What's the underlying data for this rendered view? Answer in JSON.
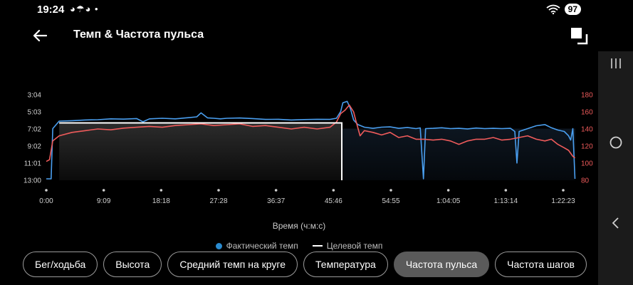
{
  "status_bar": {
    "time": "19:24",
    "notif_icons": "◕☂◕ •",
    "battery": "97"
  },
  "header": {
    "title": "Темп & Частота пульса"
  },
  "chart_data": {
    "type": "line",
    "title": "",
    "xlabel": "Время (ч:м:с)",
    "left_axis": {
      "labels": [
        "3:04",
        "5:03",
        "7:02",
        "9:02",
        "11:01",
        "13:00"
      ],
      "range_sec": [
        184,
        780
      ],
      "inverted": true
    },
    "right_axis": {
      "labels": [
        "180",
        "160",
        "140",
        "120",
        "100",
        "80"
      ],
      "range": [
        80,
        180
      ]
    },
    "x_ticks": [
      "0:00",
      "9:09",
      "18:18",
      "27:28",
      "36:37",
      "45:46",
      "54:55",
      "1:04:05",
      "1:13:14",
      "1:22:23"
    ],
    "x_range_sec": [
      0,
      4943
    ],
    "colors": {
      "pace": "#4a9ff0",
      "heart_rate": "#ef5b5b",
      "target": "#ffffff",
      "fill_top": "#2c2c2c"
    },
    "target_pace": {
      "value_sec": 380,
      "from_sec": 120,
      "to_sec": 2750
    },
    "series": [
      {
        "name": "Фактический темп",
        "unit": "min/km (seconds)",
        "points": [
          [
            0,
            770
          ],
          [
            45,
            770
          ],
          [
            60,
            420
          ],
          [
            120,
            368
          ],
          [
            240,
            365
          ],
          [
            360,
            360
          ],
          [
            480,
            358
          ],
          [
            600,
            352
          ],
          [
            720,
            354
          ],
          [
            840,
            350
          ],
          [
            900,
            372
          ],
          [
            960,
            352
          ],
          [
            1080,
            348
          ],
          [
            1200,
            352
          ],
          [
            1320,
            344
          ],
          [
            1400,
            338
          ],
          [
            1440,
            310
          ],
          [
            1500,
            345
          ],
          [
            1560,
            348
          ],
          [
            1620,
            352
          ],
          [
            1680,
            348
          ],
          [
            1800,
            346
          ],
          [
            1920,
            350
          ],
          [
            2040,
            356
          ],
          [
            2160,
            355
          ],
          [
            2280,
            360
          ],
          [
            2400,
            357
          ],
          [
            2520,
            355
          ],
          [
            2640,
            356
          ],
          [
            2700,
            348
          ],
          [
            2740,
            300
          ],
          [
            2760,
            240
          ],
          [
            2800,
            230
          ],
          [
            2830,
            280
          ],
          [
            2860,
            360
          ],
          [
            2900,
            392
          ],
          [
            2960,
            410
          ],
          [
            3040,
            418
          ],
          [
            3120,
            410
          ],
          [
            3200,
            408
          ],
          [
            3280,
            418
          ],
          [
            3360,
            412
          ],
          [
            3440,
            420
          ],
          [
            3480,
            415
          ],
          [
            3510,
            770
          ],
          [
            3530,
            420
          ],
          [
            3600,
            418
          ],
          [
            3680,
            414
          ],
          [
            3760,
            420
          ],
          [
            3840,
            418
          ],
          [
            3920,
            422
          ],
          [
            4000,
            416
          ],
          [
            4080,
            420
          ],
          [
            4160,
            418
          ],
          [
            4240,
            420
          ],
          [
            4320,
            418
          ],
          [
            4360,
            440
          ],
          [
            4380,
            660
          ],
          [
            4400,
            440
          ],
          [
            4480,
            420
          ],
          [
            4560,
            400
          ],
          [
            4640,
            392
          ],
          [
            4700,
            414
          ],
          [
            4760,
            430
          ],
          [
            4820,
            440
          ],
          [
            4860,
            470
          ],
          [
            4880,
            500
          ],
          [
            4900,
            420
          ],
          [
            4920,
            770
          ]
        ]
      },
      {
        "name": "Частота пульса",
        "unit": "bpm",
        "points": [
          [
            0,
            102
          ],
          [
            30,
            104
          ],
          [
            60,
            126
          ],
          [
            120,
            132
          ],
          [
            240,
            136
          ],
          [
            360,
            138
          ],
          [
            480,
            140
          ],
          [
            600,
            139
          ],
          [
            720,
            141
          ],
          [
            840,
            142
          ],
          [
            960,
            143
          ],
          [
            1080,
            142
          ],
          [
            1200,
            144
          ],
          [
            1320,
            145
          ],
          [
            1440,
            146
          ],
          [
            1560,
            144
          ],
          [
            1680,
            145
          ],
          [
            1800,
            146
          ],
          [
            1920,
            143
          ],
          [
            2040,
            144
          ],
          [
            2160,
            142
          ],
          [
            2280,
            140
          ],
          [
            2400,
            142
          ],
          [
            2520,
            140
          ],
          [
            2640,
            142
          ],
          [
            2700,
            148
          ],
          [
            2740,
            158
          ],
          [
            2780,
            162
          ],
          [
            2820,
            168
          ],
          [
            2860,
            160
          ],
          [
            2880,
            150
          ],
          [
            2920,
            132
          ],
          [
            2960,
            138
          ],
          [
            3040,
            136
          ],
          [
            3120,
            133
          ],
          [
            3200,
            136
          ],
          [
            3280,
            130
          ],
          [
            3360,
            132
          ],
          [
            3440,
            128
          ],
          [
            3520,
            128
          ],
          [
            3600,
            127
          ],
          [
            3680,
            128
          ],
          [
            3760,
            126
          ],
          [
            3840,
            122
          ],
          [
            3920,
            126
          ],
          [
            4000,
            128
          ],
          [
            4080,
            128
          ],
          [
            4160,
            130
          ],
          [
            4240,
            127
          ],
          [
            4320,
            128
          ],
          [
            4400,
            130
          ],
          [
            4480,
            132
          ],
          [
            4560,
            128
          ],
          [
            4640,
            126
          ],
          [
            4700,
            128
          ],
          [
            4760,
            122
          ],
          [
            4820,
            118
          ],
          [
            4860,
            115
          ],
          [
            4900,
            108
          ],
          [
            4920,
            106
          ]
        ]
      }
    ],
    "legend": [
      {
        "label": "Фактический темп",
        "marker": "dot"
      },
      {
        "label": "Целевой темп",
        "marker": "line"
      }
    ]
  },
  "tabs": [
    {
      "label": "Бег/ходьба",
      "active": false
    },
    {
      "label": "Высота",
      "active": false
    },
    {
      "label": "Средний темп на круге",
      "active": false
    },
    {
      "label": "Температура",
      "active": false
    },
    {
      "label": "Частота пульса",
      "active": true
    },
    {
      "label": "Частота шагов",
      "active": false
    }
  ]
}
